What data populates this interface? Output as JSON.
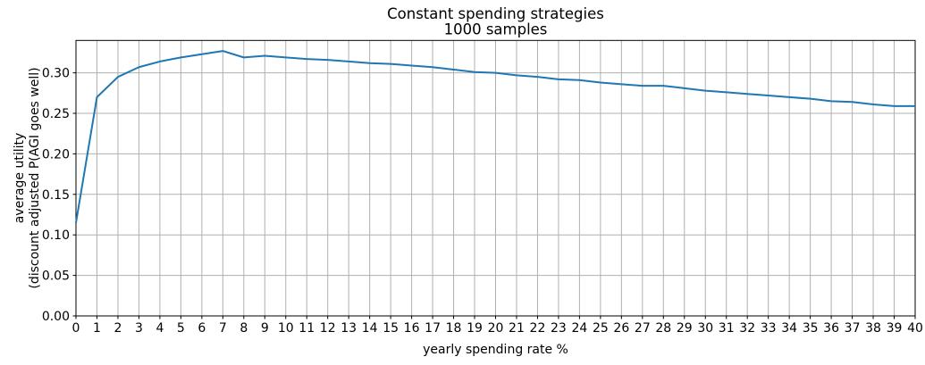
{
  "chart_data": {
    "type": "line",
    "title": "Constant spending strategies",
    "subtitle": "1000 samples",
    "xlabel": "yearly spending rate %",
    "ylabel": [
      "average utility",
      "(discount adjusted P(AGI goes well)"
    ],
    "x": [
      0,
      1,
      2,
      3,
      4,
      5,
      6,
      7,
      8,
      9,
      10,
      11,
      12,
      13,
      14,
      15,
      16,
      17,
      18,
      19,
      20,
      21,
      22,
      23,
      24,
      25,
      26,
      27,
      28,
      29,
      30,
      31,
      32,
      33,
      34,
      35,
      36,
      37,
      38,
      39,
      40
    ],
    "y": [
      0.115,
      0.27,
      0.295,
      0.307,
      0.314,
      0.319,
      0.323,
      0.327,
      0.319,
      0.321,
      0.319,
      0.317,
      0.316,
      0.314,
      0.312,
      0.311,
      0.309,
      0.307,
      0.304,
      0.301,
      0.3,
      0.297,
      0.295,
      0.292,
      0.291,
      0.288,
      0.286,
      0.284,
      0.284,
      0.281,
      0.278,
      0.276,
      0.274,
      0.272,
      0.27,
      0.268,
      0.265,
      0.264,
      0.261,
      0.259,
      0.259
    ],
    "xlim": [
      0,
      40
    ],
    "ylim": [
      0,
      0.34
    ],
    "xticks": [
      0,
      1,
      2,
      3,
      4,
      5,
      6,
      7,
      8,
      9,
      10,
      11,
      12,
      13,
      14,
      15,
      16,
      17,
      18,
      19,
      20,
      21,
      22,
      23,
      24,
      25,
      26,
      27,
      28,
      29,
      30,
      31,
      32,
      33,
      34,
      35,
      36,
      37,
      38,
      39,
      40
    ],
    "yticks": [
      0.0,
      0.05,
      0.1,
      0.15,
      0.2,
      0.25,
      0.3
    ],
    "ytick_labels": [
      "0.00",
      "0.05",
      "0.10",
      "0.15",
      "0.20",
      "0.25",
      "0.30"
    ],
    "grid": true,
    "legend_position": "none",
    "line_color": "#1f77b4",
    "grid_color": "#b0b0b0",
    "spine_color": "#000000",
    "background_color": "#ffffff"
  }
}
